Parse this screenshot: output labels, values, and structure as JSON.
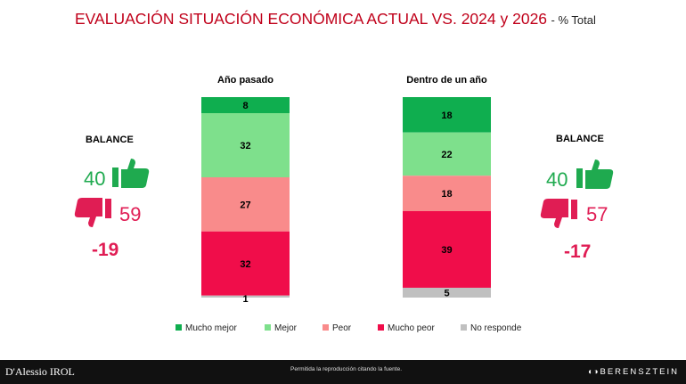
{
  "title": {
    "main": "EVALUACIÓN SITUACIÓN ECONÓMICA ACTUAL VS. 2024 y 2026",
    "sub": "- % Total"
  },
  "chart_data": {
    "type": "bar",
    "stacked": true,
    "categories": [
      "Año pasado",
      "Dentro de un año"
    ],
    "series": [
      {
        "name": "Mucho mejor",
        "values": [
          8,
          18
        ],
        "color": "#0fae4f"
      },
      {
        "name": "Mejor",
        "values": [
          32,
          22
        ],
        "color": "#7ee08c"
      },
      {
        "name": "Peor",
        "values": [
          27,
          18
        ],
        "color": "#f98b8b"
      },
      {
        "name": "Mucho peor",
        "values": [
          32,
          39
        ],
        "color": "#f00d4a"
      },
      {
        "name": "No responde",
        "values": [
          1,
          5
        ],
        "color": "#c0c0c0"
      }
    ],
    "legend_position": "bottom",
    "balances": [
      {
        "label": "BALANCE",
        "positive": "40",
        "negative": "59",
        "net": "-19"
      },
      {
        "label": "BALANCE",
        "positive": "40",
        "negative": "57",
        "net": "-17"
      }
    ]
  },
  "colors": {
    "positive": "#1faa4f",
    "negative": "#e01d54",
    "title": "#c0001a"
  },
  "icons": {
    "positive": "thumbs-up-icon",
    "negative": "thumbs-down-icon"
  },
  "footer": {
    "left": "D'Alessio IROL",
    "middle": "Permitida la reproducción citando la fuente.",
    "right": "BERENSZTEIN"
  }
}
